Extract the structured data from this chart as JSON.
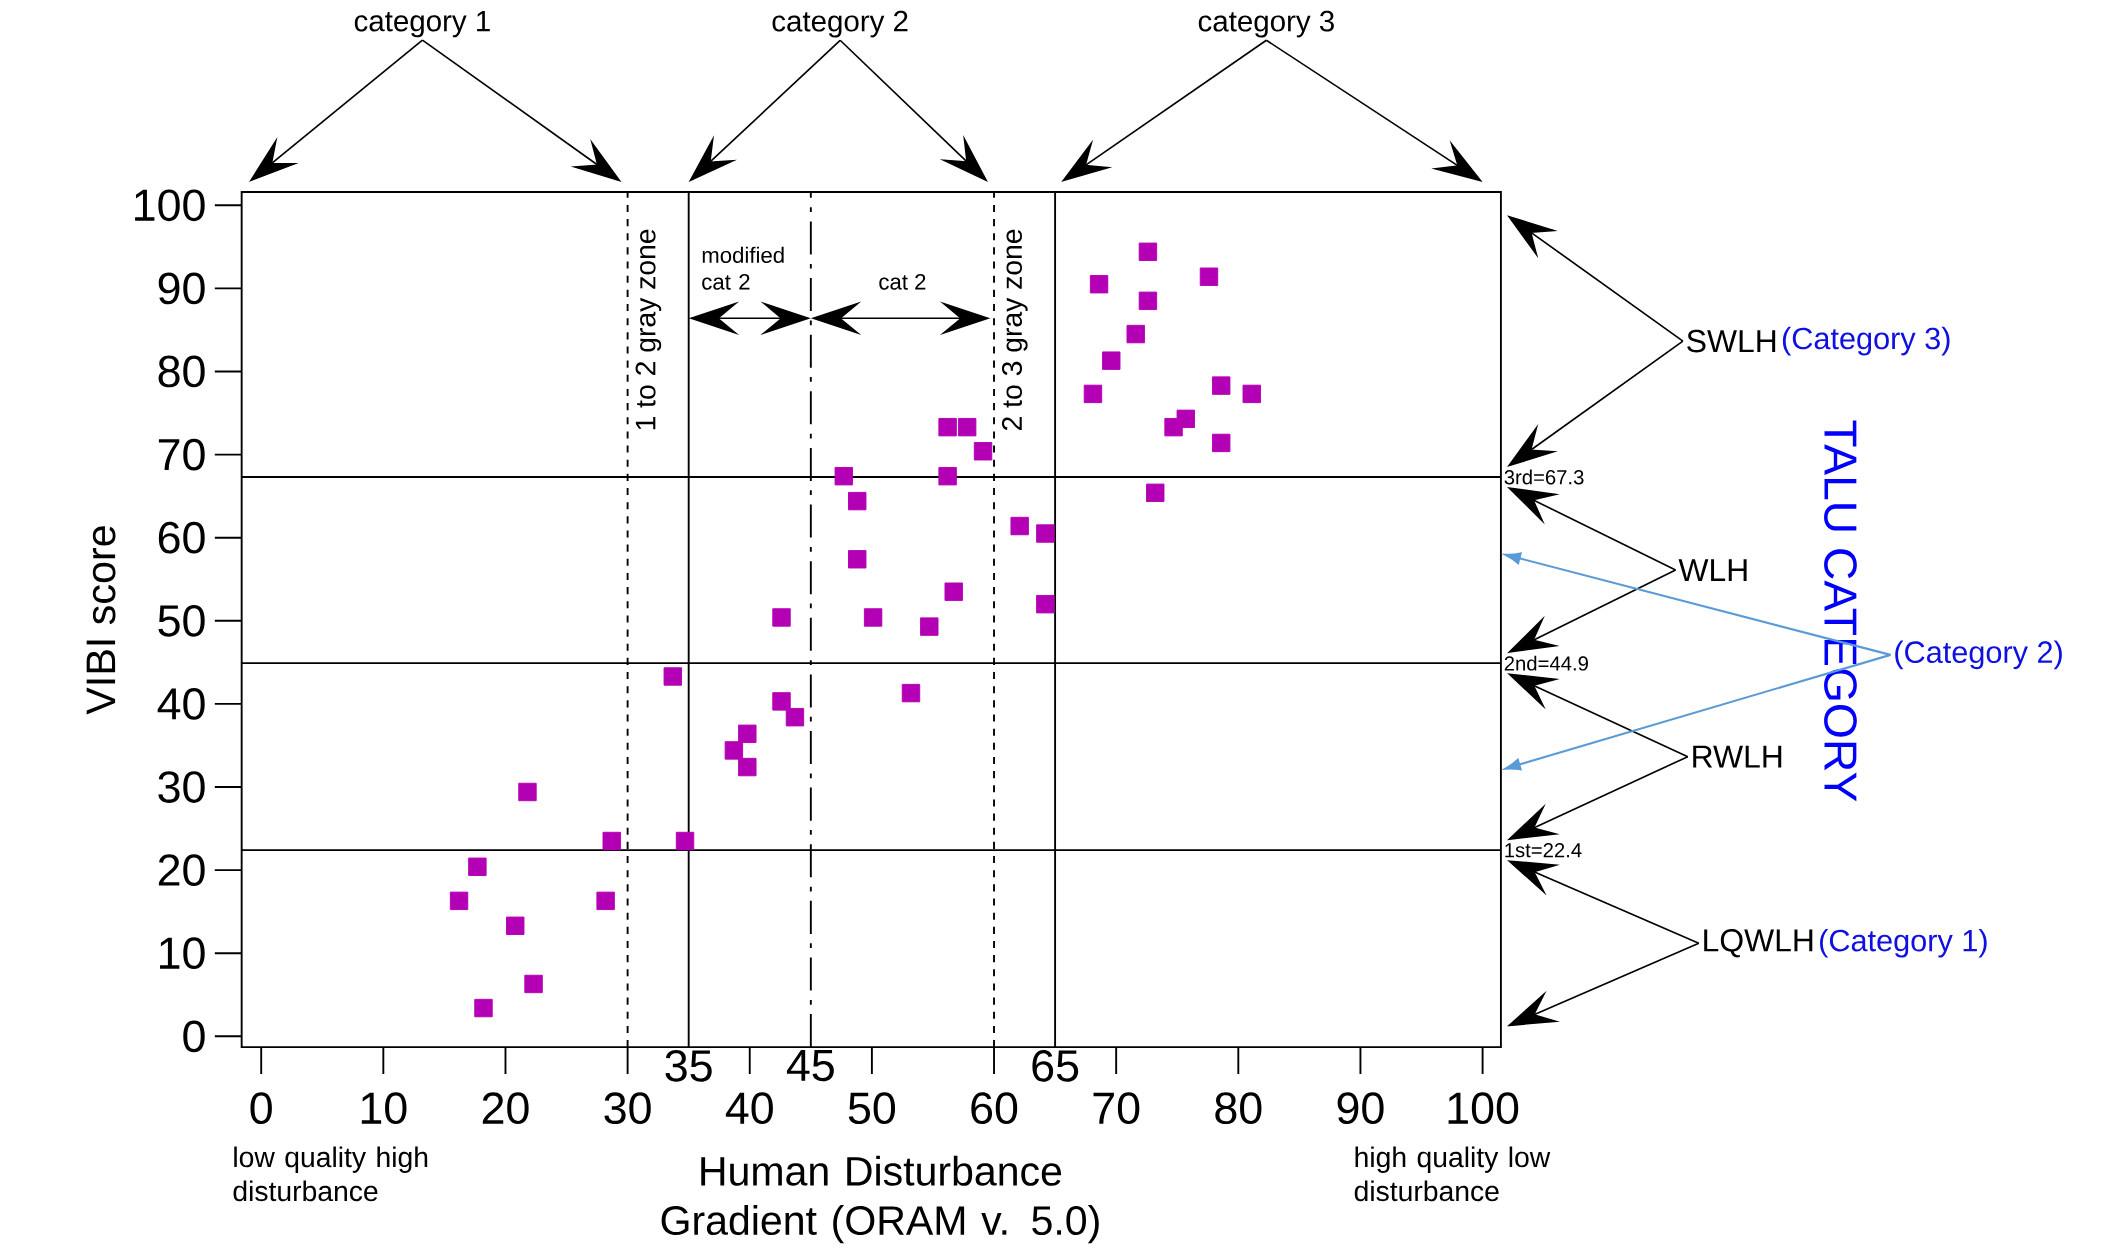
{
  "chart_data": {
    "type": "scatter",
    "xlabel": "Human Disturbance Gradient (ORAM v. 5.0)",
    "ylabel": "VIBI score",
    "xlim": [
      -1.6,
      101.5
    ],
    "ylim": [
      -1.3,
      101.6
    ],
    "xticks": [
      0,
      10,
      20,
      30,
      40,
      50,
      60,
      70,
      80,
      90,
      100
    ],
    "yticks": [
      0,
      10,
      20,
      30,
      40,
      50,
      60,
      70,
      80,
      90,
      100
    ],
    "marker": "square",
    "series": [
      {
        "color": "#b400b4",
        "x": [
          33.7,
          42.6,
          47.7,
          48.8,
          48.8,
          50.1,
          54.7,
          56.7,
          56.2,
          57.8,
          59.1,
          56.2,
          62.1,
          64.2,
          64.2,
          53.2,
          42.6,
          43.7,
          39.8,
          38.7,
          39.8,
          21.8,
          28.7,
          34.7,
          17.7,
          16.2,
          28.2,
          20.8,
          22.3,
          18.2,
          72.6,
          68.6,
          77.6,
          72.6,
          71.6,
          69.6,
          68.1,
          78.6,
          81.1,
          75.7,
          74.7,
          78.6,
          73.2
        ],
        "values": [
          43.3,
          50.4,
          67.4,
          64.4,
          57.4,
          50.4,
          49.3,
          53.5,
          73.3,
          73.3,
          70.4,
          67.4,
          61.4,
          60.5,
          52.0,
          41.3,
          40.3,
          38.4,
          36.4,
          34.4,
          32.4,
          29.4,
          23.5,
          23.5,
          20.4,
          16.3,
          16.3,
          13.3,
          6.3,
          3.4,
          94.4,
          90.5,
          91.4,
          88.5,
          84.5,
          81.3,
          77.3,
          78.3,
          77.3,
          74.3,
          73.3,
          71.4,
          65.4
        ]
      }
    ],
    "ref_lines": [
      {
        "axis": "x",
        "value": 30,
        "label": "1 to 2 gray zone",
        "line_style": "dotted"
      },
      {
        "axis": "x",
        "value": 35,
        "label": "35"
      },
      {
        "axis": "x",
        "value": 45,
        "label": "45",
        "line_style": "dashed"
      },
      {
        "axis": "x",
        "value": 60,
        "label": "2 to 3 gray zone",
        "line_style": "dotted"
      },
      {
        "axis": "x",
        "value": 65,
        "label": "65"
      },
      {
        "axis": "y",
        "value": 67.3,
        "label": "3rd=67.3"
      },
      {
        "axis": "y",
        "value": 44.9,
        "label": "2nd=44.9"
      },
      {
        "axis": "y",
        "value": 22.4,
        "label": "1st=22.4"
      }
    ],
    "annotations": [
      "category 1",
      "category 2",
      "category 3",
      "modified cat 2",
      "cat 2",
      "low quality high disturbance",
      "high quality low disturbance",
      "SWLH",
      "(Category 3)",
      "WLH",
      "(Category 2)",
      "RWLH",
      "LQWLH",
      "(Category 1)",
      "TALU CATEGORY"
    ]
  }
}
